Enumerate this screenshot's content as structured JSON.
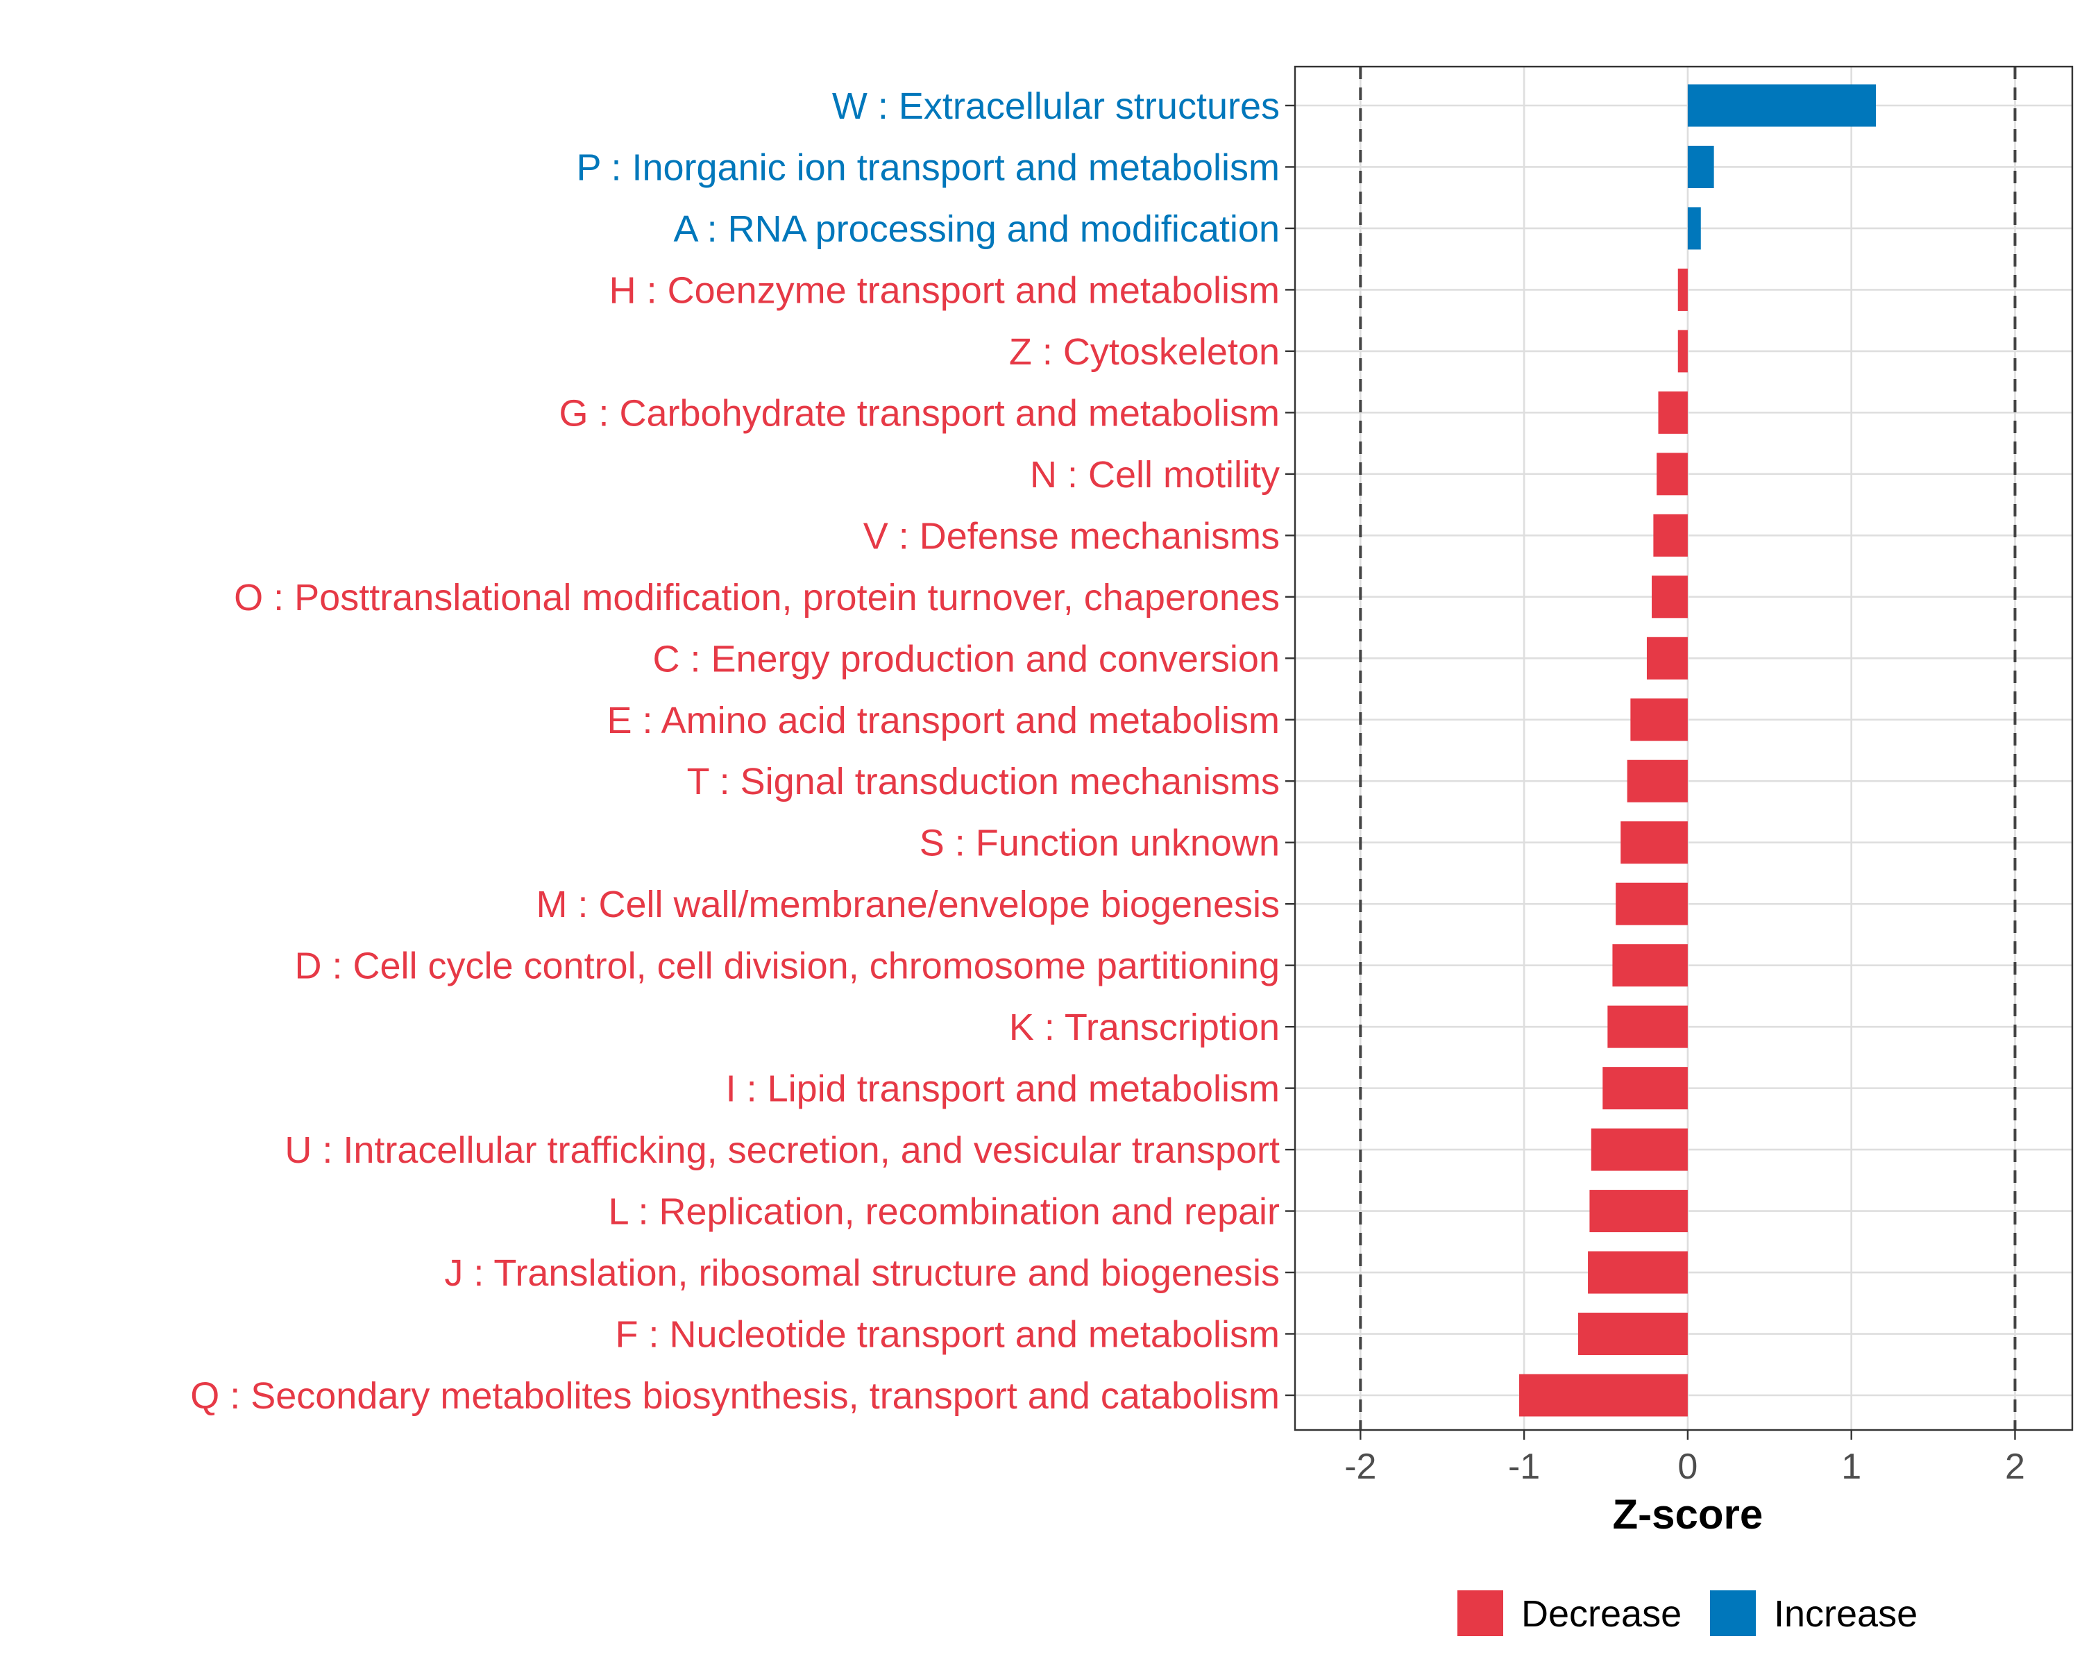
{
  "chart_data": {
    "type": "bar",
    "orientation": "horizontal",
    "xlabel": "Z-score",
    "ylabel": "",
    "xlim": [
      -2.4,
      2.35
    ],
    "x_ticks": [
      -2,
      -1,
      0,
      1,
      2
    ],
    "x_tick_labels": [
      "-2",
      "-1",
      "0",
      "1",
      "2"
    ],
    "reference_lines": [
      -2,
      2
    ],
    "grid": true,
    "legend_position": "bottom",
    "legend": [
      {
        "name": "Decrease",
        "color": "#E63946"
      },
      {
        "name": "Increase",
        "color": "#0077BB"
      }
    ],
    "categories": [
      "W : Extracellular structures",
      "P : Inorganic ion transport and metabolism",
      "A : RNA processing and modification",
      "H : Coenzyme transport and metabolism",
      "Z : Cytoskeleton",
      "G : Carbohydrate transport and metabolism",
      "N : Cell motility",
      "V : Defense mechanisms",
      "O : Posttranslational modification, protein turnover, chaperones",
      "C : Energy production and conversion",
      "E : Amino acid transport and metabolism",
      "T : Signal transduction mechanisms",
      "S : Function unknown",
      "M : Cell wall/membrane/envelope biogenesis",
      "D : Cell cycle control, cell division, chromosome partitioning",
      "K : Transcription",
      "I : Lipid transport and metabolism",
      "U : Intracellular trafficking, secretion, and vesicular transport",
      "L : Replication, recombination and repair",
      "J : Translation, ribosomal structure and biogenesis",
      "F : Nucleotide transport and metabolism",
      "Q : Secondary metabolites biosynthesis, transport and catabolism"
    ],
    "values": [
      1.15,
      0.16,
      0.08,
      -0.06,
      -0.06,
      -0.18,
      -0.19,
      -0.21,
      -0.22,
      -0.25,
      -0.35,
      -0.37,
      -0.41,
      -0.44,
      -0.46,
      -0.49,
      -0.52,
      -0.59,
      -0.6,
      -0.61,
      -0.67,
      -1.03
    ],
    "groups": [
      "Increase",
      "Increase",
      "Increase",
      "Decrease",
      "Decrease",
      "Decrease",
      "Decrease",
      "Decrease",
      "Decrease",
      "Decrease",
      "Decrease",
      "Decrease",
      "Decrease",
      "Decrease",
      "Decrease",
      "Decrease",
      "Decrease",
      "Decrease",
      "Decrease",
      "Decrease",
      "Decrease",
      "Decrease"
    ]
  }
}
